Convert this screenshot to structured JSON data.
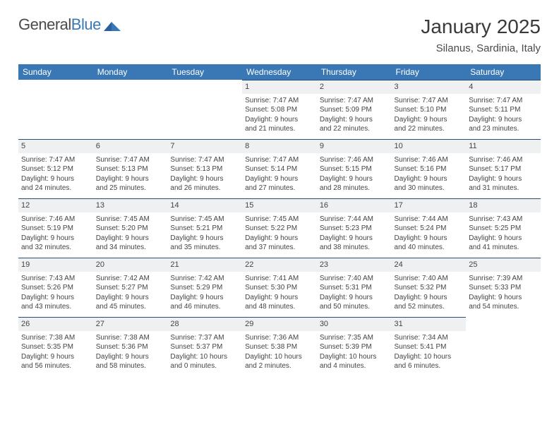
{
  "logo": {
    "t1": "General",
    "t2": "Blue"
  },
  "header": {
    "month_title": "January 2025",
    "location": "Silanus, Sardinia, Italy"
  },
  "colors": {
    "header_bg": "#3a78b5",
    "header_text": "#ffffff",
    "daynum_bg": "#eef0f2",
    "daynum_border": "#2d4d6b",
    "body_text": "#444444"
  },
  "weekdays": [
    "Sunday",
    "Monday",
    "Tuesday",
    "Wednesday",
    "Thursday",
    "Friday",
    "Saturday"
  ],
  "weeks": [
    [
      {
        "day": "",
        "lines": []
      },
      {
        "day": "",
        "lines": []
      },
      {
        "day": "",
        "lines": []
      },
      {
        "day": "1",
        "lines": [
          "Sunrise: 7:47 AM",
          "Sunset: 5:08 PM",
          "Daylight: 9 hours",
          "and 21 minutes."
        ]
      },
      {
        "day": "2",
        "lines": [
          "Sunrise: 7:47 AM",
          "Sunset: 5:09 PM",
          "Daylight: 9 hours",
          "and 22 minutes."
        ]
      },
      {
        "day": "3",
        "lines": [
          "Sunrise: 7:47 AM",
          "Sunset: 5:10 PM",
          "Daylight: 9 hours",
          "and 22 minutes."
        ]
      },
      {
        "day": "4",
        "lines": [
          "Sunrise: 7:47 AM",
          "Sunset: 5:11 PM",
          "Daylight: 9 hours",
          "and 23 minutes."
        ]
      }
    ],
    [
      {
        "day": "5",
        "lines": [
          "Sunrise: 7:47 AM",
          "Sunset: 5:12 PM",
          "Daylight: 9 hours",
          "and 24 minutes."
        ]
      },
      {
        "day": "6",
        "lines": [
          "Sunrise: 7:47 AM",
          "Sunset: 5:13 PM",
          "Daylight: 9 hours",
          "and 25 minutes."
        ]
      },
      {
        "day": "7",
        "lines": [
          "Sunrise: 7:47 AM",
          "Sunset: 5:13 PM",
          "Daylight: 9 hours",
          "and 26 minutes."
        ]
      },
      {
        "day": "8",
        "lines": [
          "Sunrise: 7:47 AM",
          "Sunset: 5:14 PM",
          "Daylight: 9 hours",
          "and 27 minutes."
        ]
      },
      {
        "day": "9",
        "lines": [
          "Sunrise: 7:46 AM",
          "Sunset: 5:15 PM",
          "Daylight: 9 hours",
          "and 28 minutes."
        ]
      },
      {
        "day": "10",
        "lines": [
          "Sunrise: 7:46 AM",
          "Sunset: 5:16 PM",
          "Daylight: 9 hours",
          "and 30 minutes."
        ]
      },
      {
        "day": "11",
        "lines": [
          "Sunrise: 7:46 AM",
          "Sunset: 5:17 PM",
          "Daylight: 9 hours",
          "and 31 minutes."
        ]
      }
    ],
    [
      {
        "day": "12",
        "lines": [
          "Sunrise: 7:46 AM",
          "Sunset: 5:19 PM",
          "Daylight: 9 hours",
          "and 32 minutes."
        ]
      },
      {
        "day": "13",
        "lines": [
          "Sunrise: 7:45 AM",
          "Sunset: 5:20 PM",
          "Daylight: 9 hours",
          "and 34 minutes."
        ]
      },
      {
        "day": "14",
        "lines": [
          "Sunrise: 7:45 AM",
          "Sunset: 5:21 PM",
          "Daylight: 9 hours",
          "and 35 minutes."
        ]
      },
      {
        "day": "15",
        "lines": [
          "Sunrise: 7:45 AM",
          "Sunset: 5:22 PM",
          "Daylight: 9 hours",
          "and 37 minutes."
        ]
      },
      {
        "day": "16",
        "lines": [
          "Sunrise: 7:44 AM",
          "Sunset: 5:23 PM",
          "Daylight: 9 hours",
          "and 38 minutes."
        ]
      },
      {
        "day": "17",
        "lines": [
          "Sunrise: 7:44 AM",
          "Sunset: 5:24 PM",
          "Daylight: 9 hours",
          "and 40 minutes."
        ]
      },
      {
        "day": "18",
        "lines": [
          "Sunrise: 7:43 AM",
          "Sunset: 5:25 PM",
          "Daylight: 9 hours",
          "and 41 minutes."
        ]
      }
    ],
    [
      {
        "day": "19",
        "lines": [
          "Sunrise: 7:43 AM",
          "Sunset: 5:26 PM",
          "Daylight: 9 hours",
          "and 43 minutes."
        ]
      },
      {
        "day": "20",
        "lines": [
          "Sunrise: 7:42 AM",
          "Sunset: 5:27 PM",
          "Daylight: 9 hours",
          "and 45 minutes."
        ]
      },
      {
        "day": "21",
        "lines": [
          "Sunrise: 7:42 AM",
          "Sunset: 5:29 PM",
          "Daylight: 9 hours",
          "and 46 minutes."
        ]
      },
      {
        "day": "22",
        "lines": [
          "Sunrise: 7:41 AM",
          "Sunset: 5:30 PM",
          "Daylight: 9 hours",
          "and 48 minutes."
        ]
      },
      {
        "day": "23",
        "lines": [
          "Sunrise: 7:40 AM",
          "Sunset: 5:31 PM",
          "Daylight: 9 hours",
          "and 50 minutes."
        ]
      },
      {
        "day": "24",
        "lines": [
          "Sunrise: 7:40 AM",
          "Sunset: 5:32 PM",
          "Daylight: 9 hours",
          "and 52 minutes."
        ]
      },
      {
        "day": "25",
        "lines": [
          "Sunrise: 7:39 AM",
          "Sunset: 5:33 PM",
          "Daylight: 9 hours",
          "and 54 minutes."
        ]
      }
    ],
    [
      {
        "day": "26",
        "lines": [
          "Sunrise: 7:38 AM",
          "Sunset: 5:35 PM",
          "Daylight: 9 hours",
          "and 56 minutes."
        ]
      },
      {
        "day": "27",
        "lines": [
          "Sunrise: 7:38 AM",
          "Sunset: 5:36 PM",
          "Daylight: 9 hours",
          "and 58 minutes."
        ]
      },
      {
        "day": "28",
        "lines": [
          "Sunrise: 7:37 AM",
          "Sunset: 5:37 PM",
          "Daylight: 10 hours",
          "and 0 minutes."
        ]
      },
      {
        "day": "29",
        "lines": [
          "Sunrise: 7:36 AM",
          "Sunset: 5:38 PM",
          "Daylight: 10 hours",
          "and 2 minutes."
        ]
      },
      {
        "day": "30",
        "lines": [
          "Sunrise: 7:35 AM",
          "Sunset: 5:39 PM",
          "Daylight: 10 hours",
          "and 4 minutes."
        ]
      },
      {
        "day": "31",
        "lines": [
          "Sunrise: 7:34 AM",
          "Sunset: 5:41 PM",
          "Daylight: 10 hours",
          "and 6 minutes."
        ]
      },
      {
        "day": "",
        "lines": []
      }
    ]
  ]
}
